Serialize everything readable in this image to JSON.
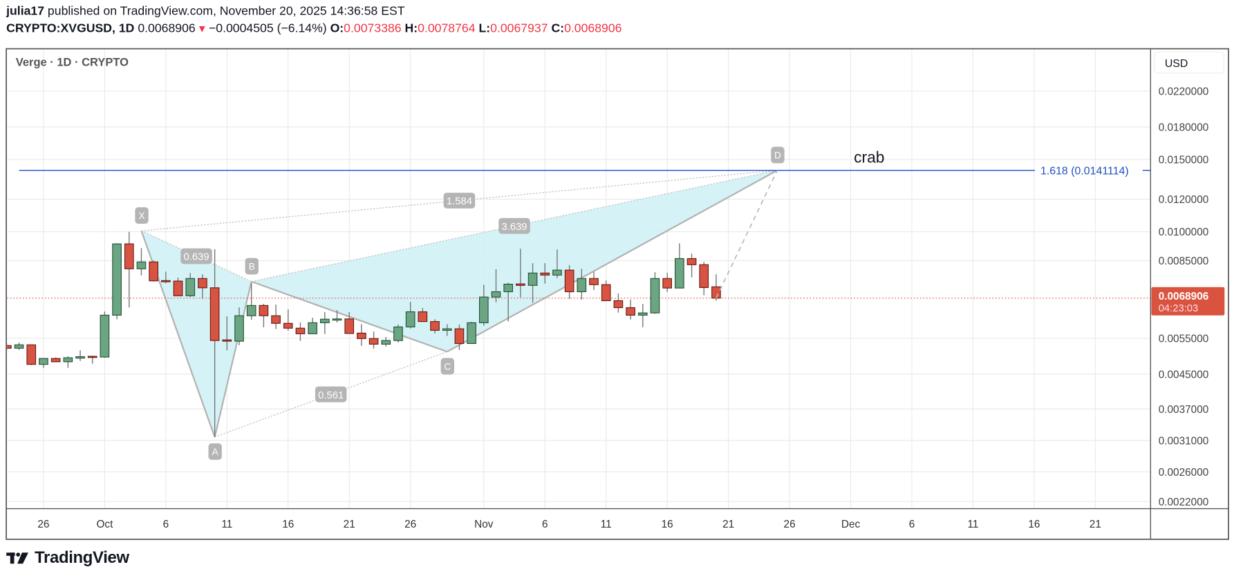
{
  "header": {
    "author": "julia17",
    "published": " published on TradingView.com, November 20, 2025 14:36:58 EST",
    "symbol": "CRYPTO:XVGUSD, 1D",
    "last": "0.0068906",
    "change": "−0.0004505 (−6.14%)",
    "o_label": "O:",
    "o": "0.0073386",
    "h_label": "H:",
    "h": "0.0078764",
    "l_label": "L:",
    "l": "0.0067937",
    "c_label": "C:",
    "c": "0.0068906"
  },
  "legend": "Verge · 1D · CRYPTO",
  "currency_button": "USD",
  "current_price": {
    "price": 0.0068906,
    "label": "0.0068906",
    "countdown": "04:23:03"
  },
  "logo": "TradingView",
  "colors": {
    "up": "#6ba583",
    "up_border": "#225437",
    "down": "#d75442",
    "down_border": "#6b1a12",
    "wick": "#737373",
    "fib": "#1f4fc6",
    "pattern_fill": "#d3f2f7",
    "pattern_line": "#b3b3b3",
    "point_label": "#b5b5b5",
    "price_tag": "#d9533f"
  },
  "chart_data": {
    "type": "candlestick",
    "title": "Verge · 1D · CRYPTO",
    "y_scale": "log",
    "ylim": [
      0.0021,
      0.024
    ],
    "grid": true,
    "price_ticks": [
      {
        "value": 0.022,
        "label": "0.0220000"
      },
      {
        "value": 0.018,
        "label": "0.0180000"
      },
      {
        "value": 0.015,
        "label": "0.0150000"
      },
      {
        "value": 0.012,
        "label": "0.0120000"
      },
      {
        "value": 0.01,
        "label": "0.0100000"
      },
      {
        "value": 0.0085,
        "label": "0.0085000"
      },
      {
        "value": 0.0055,
        "label": "0.0055000"
      },
      {
        "value": 0.0045,
        "label": "0.0045000"
      },
      {
        "value": 0.0037,
        "label": "0.0037000"
      },
      {
        "value": 0.0031,
        "label": "0.0031000"
      },
      {
        "value": 0.0026,
        "label": "0.0026000"
      },
      {
        "value": 0.0022,
        "label": "0.0022000"
      }
    ],
    "date_ticks": [
      {
        "date": "2025-09-26",
        "label": "26"
      },
      {
        "date": "2025-10-01",
        "label": "Oct"
      },
      {
        "date": "2025-10-06",
        "label": "6"
      },
      {
        "date": "2025-10-11",
        "label": "11"
      },
      {
        "date": "2025-10-16",
        "label": "16"
      },
      {
        "date": "2025-10-21",
        "label": "21"
      },
      {
        "date": "2025-10-26",
        "label": "26"
      },
      {
        "date": "2025-11-01",
        "label": "Nov"
      },
      {
        "date": "2025-11-06",
        "label": "6"
      },
      {
        "date": "2025-11-11",
        "label": "11"
      },
      {
        "date": "2025-11-16",
        "label": "16"
      },
      {
        "date": "2025-11-21",
        "label": "21"
      },
      {
        "date": "2025-11-26",
        "label": "26"
      },
      {
        "date": "2025-12-01",
        "label": "Dec"
      },
      {
        "date": "2025-12-06",
        "label": "6"
      },
      {
        "date": "2025-12-11",
        "label": "11"
      },
      {
        "date": "2025-12-16",
        "label": "16"
      },
      {
        "date": "2025-12-21",
        "label": "21"
      }
    ],
    "candle_fields": [
      "date",
      "open",
      "high",
      "low",
      "close"
    ],
    "candles": [
      [
        "2025-09-23",
        0.00528,
        0.00535,
        0.00514,
        0.0052
      ],
      [
        "2025-09-24",
        0.0052,
        0.00537,
        0.00515,
        0.0053
      ],
      [
        "2025-09-25",
        0.0053,
        0.00531,
        0.00473,
        0.00475
      ],
      [
        "2025-09-26",
        0.00475,
        0.00492,
        0.00466,
        0.00491
      ],
      [
        "2025-09-27",
        0.00491,
        0.00494,
        0.00481,
        0.00482
      ],
      [
        "2025-09-28",
        0.00482,
        0.00497,
        0.00466,
        0.00493
      ],
      [
        "2025-09-29",
        0.00492,
        0.00514,
        0.00484,
        0.00496
      ],
      [
        "2025-09-30",
        0.00497,
        0.00499,
        0.00477,
        0.00496
      ],
      [
        "2025-10-01",
        0.00495,
        0.00639,
        0.00493,
        0.00626
      ],
      [
        "2025-10-02",
        0.00626,
        0.00937,
        0.00612,
        0.00934
      ],
      [
        "2025-10-03",
        0.00934,
        0.00999,
        0.00654,
        0.00812
      ],
      [
        "2025-10-04",
        0.00812,
        0.00912,
        0.00783,
        0.00844
      ],
      [
        "2025-10-05",
        0.00844,
        0.00851,
        0.00756,
        0.00759
      ],
      [
        "2025-10-06",
        0.0076,
        0.00799,
        0.00749,
        0.00758
      ],
      [
        "2025-10-07",
        0.00758,
        0.00773,
        0.00697,
        0.00698
      ],
      [
        "2025-10-08",
        0.00698,
        0.00793,
        0.00693,
        0.00769
      ],
      [
        "2025-10-09",
        0.00769,
        0.00787,
        0.00686,
        0.0073
      ],
      [
        "2025-10-10",
        0.0073,
        0.00906,
        0.00316,
        0.00543
      ],
      [
        "2025-10-11",
        0.00545,
        0.00622,
        0.00514,
        0.00541
      ],
      [
        "2025-10-12",
        0.00541,
        0.00654,
        0.00529,
        0.00624
      ],
      [
        "2025-10-13",
        0.00624,
        0.0075,
        0.0061,
        0.00661
      ],
      [
        "2025-10-14",
        0.00661,
        0.00667,
        0.00585,
        0.00624
      ],
      [
        "2025-10-15",
        0.00624,
        0.00664,
        0.00579,
        0.00598
      ],
      [
        "2025-10-16",
        0.00598,
        0.00647,
        0.00574,
        0.00582
      ],
      [
        "2025-10-17",
        0.00582,
        0.00601,
        0.00542,
        0.00564
      ],
      [
        "2025-10-18",
        0.00564,
        0.00617,
        0.00564,
        0.006
      ],
      [
        "2025-10-19",
        0.006,
        0.00637,
        0.00563,
        0.00612
      ],
      [
        "2025-10-20",
        0.00611,
        0.00644,
        0.00601,
        0.00613
      ],
      [
        "2025-10-21",
        0.00613,
        0.00637,
        0.00565,
        0.00565
      ],
      [
        "2025-10-22",
        0.00566,
        0.00595,
        0.00527,
        0.00549
      ],
      [
        "2025-10-23",
        0.00549,
        0.00571,
        0.00519,
        0.00532
      ],
      [
        "2025-10-24",
        0.00532,
        0.00554,
        0.00525,
        0.00543
      ],
      [
        "2025-10-25",
        0.00543,
        0.00594,
        0.00537,
        0.00586
      ],
      [
        "2025-10-26",
        0.00586,
        0.00675,
        0.00581,
        0.00638
      ],
      [
        "2025-10-27",
        0.00638,
        0.00652,
        0.00604,
        0.00604
      ],
      [
        "2025-10-28",
        0.00604,
        0.00612,
        0.00565,
        0.00575
      ],
      [
        "2025-10-29",
        0.00575,
        0.00595,
        0.00557,
        0.0058
      ],
      [
        "2025-10-30",
        0.0058,
        0.00594,
        0.00515,
        0.00534
      ],
      [
        "2025-10-31",
        0.00534,
        0.00603,
        0.00534,
        0.006
      ],
      [
        "2025-11-01",
        0.006,
        0.00743,
        0.0059,
        0.00693
      ],
      [
        "2025-11-02",
        0.00693,
        0.0081,
        0.00673,
        0.00714
      ],
      [
        "2025-11-03",
        0.00714,
        0.00751,
        0.00604,
        0.00745
      ],
      [
        "2025-11-04",
        0.00746,
        0.00909,
        0.00692,
        0.0074
      ],
      [
        "2025-11-05",
        0.0074,
        0.00838,
        0.00671,
        0.00793
      ],
      [
        "2025-11-06",
        0.00793,
        0.00838,
        0.00747,
        0.00784
      ],
      [
        "2025-11-07",
        0.00784,
        0.00905,
        0.00771,
        0.00806
      ],
      [
        "2025-11-08",
        0.00806,
        0.00829,
        0.00686,
        0.00714
      ],
      [
        "2025-11-09",
        0.00714,
        0.00812,
        0.00683,
        0.00769
      ],
      [
        "2025-11-10",
        0.00769,
        0.00799,
        0.00721,
        0.00743
      ],
      [
        "2025-11-11",
        0.00743,
        0.00761,
        0.00679,
        0.00679
      ],
      [
        "2025-11-12",
        0.00679,
        0.00707,
        0.00635,
        0.00653
      ],
      [
        "2025-11-13",
        0.00653,
        0.00683,
        0.00611,
        0.00626
      ],
      [
        "2025-11-14",
        0.00626,
        0.00667,
        0.00585,
        0.00634
      ],
      [
        "2025-11-15",
        0.00634,
        0.00797,
        0.00631,
        0.00769
      ],
      [
        "2025-11-16",
        0.00769,
        0.00794,
        0.00713,
        0.00729
      ],
      [
        "2025-11-17",
        0.00729,
        0.00937,
        0.00729,
        0.0086
      ],
      [
        "2025-11-18",
        0.0086,
        0.00884,
        0.00774,
        0.00831
      ],
      [
        "2025-11-19",
        0.00831,
        0.00844,
        0.007,
        0.00731
      ],
      [
        "2025-11-20",
        0.0073386,
        0.0078764,
        0.0067937,
        0.0068906
      ]
    ],
    "pattern": {
      "name": "crab",
      "points": [
        {
          "label": "X",
          "date": "2025-10-04",
          "price": 0.01005
        },
        {
          "label": "A",
          "date": "2025-10-10",
          "price": 0.00316
        },
        {
          "label": "B",
          "date": "2025-10-13",
          "price": 0.00756
        },
        {
          "label": "C",
          "date": "2025-10-29",
          "price": 0.0051
        },
        {
          "label": "D",
          "date": "2025-11-25",
          "price": 0.0141114
        }
      ],
      "ratios": [
        {
          "from": "X",
          "to": "B",
          "label": "0.639"
        },
        {
          "from": "X",
          "to": "D",
          "label": "1.584"
        },
        {
          "from": "B",
          "to": "D",
          "label": "3.639"
        },
        {
          "from": "A",
          "to": "C",
          "label": "0.561"
        }
      ]
    },
    "fib_level": {
      "level": "1.618",
      "price": 0.0141114,
      "label": "1.618 (0.0141114)",
      "start_date": "2025-09-24"
    }
  }
}
